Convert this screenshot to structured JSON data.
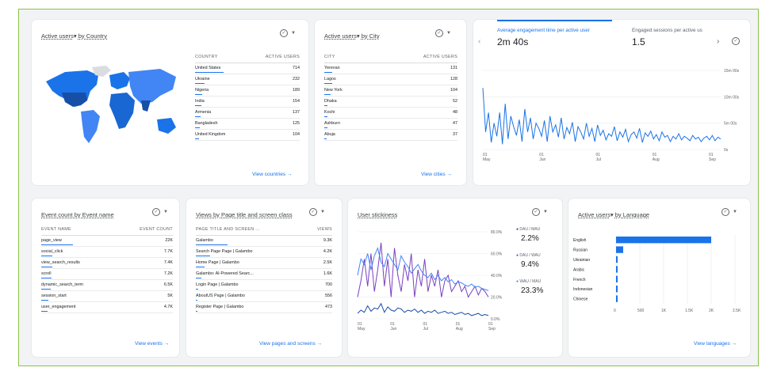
{
  "colors": {
    "accent": "#1a73e8",
    "purple": "#7b3fbf",
    "blue2": "#4285f4"
  },
  "country_card": {
    "title_prefix": "Active users",
    "title_suffix": "by Country",
    "col_country": "COUNTRY",
    "col_users": "ACTIVE USERS",
    "rows": [
      {
        "name": "United States",
        "value": "714",
        "frac": 1.0
      },
      {
        "name": "Ukraine",
        "value": "232",
        "frac": 0.32
      },
      {
        "name": "Nigeria",
        "value": "189",
        "frac": 0.26
      },
      {
        "name": "India",
        "value": "154",
        "frac": 0.22
      },
      {
        "name": "Armenia",
        "value": "137",
        "frac": 0.19
      },
      {
        "name": "Bangladesh",
        "value": "125",
        "frac": 0.18
      },
      {
        "name": "United Kingdom",
        "value": "104",
        "frac": 0.15
      }
    ],
    "link": "View countries"
  },
  "city_card": {
    "title_prefix": "Active users",
    "title_suffix": "by City",
    "col_city": "CITY",
    "col_users": "ACTIVE USERS",
    "rows": [
      {
        "name": "Yerevan",
        "value": "131",
        "frac": 1.0
      },
      {
        "name": "Lagos",
        "value": "128",
        "frac": 0.97
      },
      {
        "name": "New York",
        "value": "104",
        "frac": 0.79
      },
      {
        "name": "Dhaka",
        "value": "52",
        "frac": 0.4
      },
      {
        "name": "Kochi",
        "value": "48",
        "frac": 0.37
      },
      {
        "name": "Ashburn",
        "value": "47",
        "frac": 0.36
      },
      {
        "name": "Abuja",
        "value": "37",
        "frac": 0.28
      }
    ],
    "link": "View cities"
  },
  "engagement_card": {
    "metric1_label": "Average engagement time per active user",
    "metric1_value": "2m 40s",
    "metric2_label": "Engaged sessions per active us",
    "metric2_value": "1.5",
    "chart_data": {
      "type": "line",
      "y_ticks": [
        "15m 00s",
        "10m 00s",
        "5m 00s",
        "0s"
      ],
      "x_ticks": [
        "01 May",
        "01 Jun",
        "01 Jul",
        "01 Aug",
        "01 Sep"
      ],
      "values_seconds": [
        700,
        200,
        420,
        80,
        300,
        150,
        420,
        60,
        520,
        120,
        380,
        260,
        160,
        340,
        90,
        460,
        200,
        360,
        120,
        300,
        240,
        150,
        330,
        90,
        380,
        200,
        280,
        140,
        360,
        120,
        250,
        180,
        310,
        90,
        260,
        200,
        120,
        300,
        150,
        240,
        90,
        280,
        160,
        220,
        110,
        180,
        150,
        260,
        100,
        200,
        140,
        230,
        90,
        170,
        200,
        130,
        240,
        80,
        190,
        150,
        210,
        120,
        170,
        100,
        200,
        140,
        160,
        90,
        150,
        120,
        180,
        110,
        150,
        130,
        100,
        160,
        120,
        140,
        90,
        130,
        150,
        110,
        160,
        100,
        140,
        120
      ]
    }
  },
  "event_card": {
    "title": "Event count by Event name",
    "col_name": "EVENT NAME",
    "col_count": "EVENT COUNT",
    "rows": [
      {
        "name": "page_view",
        "value": "22K",
        "frac": 1.0
      },
      {
        "name": "social_click",
        "value": "7.7K",
        "frac": 0.35
      },
      {
        "name": "view_search_results",
        "value": "7.4K",
        "frac": 0.34
      },
      {
        "name": "scroll",
        "value": "7.2K",
        "frac": 0.33
      },
      {
        "name": "dynamic_search_term",
        "value": "6.5K",
        "frac": 0.3
      },
      {
        "name": "session_start",
        "value": "5K",
        "frac": 0.23
      },
      {
        "name": "user_engagement",
        "value": "4.7K",
        "frac": 0.21
      }
    ],
    "link": "View events"
  },
  "views_card": {
    "title": "Views by Page title and screen class",
    "col_name": "PAGE TITLE AND SCREEN ...",
    "col_count": "VIEWS",
    "rows": [
      {
        "name": "Galambo",
        "value": "9.3K",
        "frac": 1.0
      },
      {
        "name": "Search Page Page | Galambo",
        "value": "4.2K",
        "frac": 0.45
      },
      {
        "name": "Home Page | Galambo",
        "value": "2.5K",
        "frac": 0.27
      },
      {
        "name": "Galambo: AI-Powered Searc...",
        "value": "1.6K",
        "frac": 0.17
      },
      {
        "name": "Login Page | Galambo",
        "value": "700",
        "frac": 0.08
      },
      {
        "name": "AboutUS Page | Galambo",
        "value": "556",
        "frac": 0.06
      },
      {
        "name": "Register Page | Galambo",
        "value": "473",
        "frac": 0.05
      }
    ],
    "link": "View pages and screens"
  },
  "stickiness_card": {
    "title": "User stickiness",
    "metric1_label": "DAU / MAU",
    "metric1_value": "2.2%",
    "metric2_label": "DAU / WAU",
    "metric2_value": "9.4%",
    "metric3_label": "WAU / MAU",
    "metric3_value": "23.3%",
    "chart_data": {
      "type": "line",
      "y_ticks": [
        "80.0%",
        "60.0%",
        "40.0%",
        "20.0%",
        "0.0%"
      ],
      "x_ticks": [
        "01 May",
        "01 Jun",
        "01 Jul",
        "01 Aug",
        "01 Sep"
      ],
      "series": [
        {
          "name": "DAU / WAU",
          "values": [
            20,
            35,
            55,
            30,
            60,
            25,
            45,
            70,
            30,
            55,
            20,
            65,
            40,
            25,
            50,
            35,
            60,
            20,
            45,
            30,
            55,
            25,
            40,
            30,
            45,
            20,
            35,
            40,
            25,
            30,
            35,
            25,
            30,
            20,
            25,
            30,
            22,
            28,
            25,
            20
          ]
        },
        {
          "name": "WAU / MAU",
          "values": [
            40,
            55,
            50,
            60,
            45,
            58,
            65,
            52,
            48,
            60,
            55,
            50,
            45,
            58,
            52,
            48,
            42,
            46,
            50,
            44,
            40,
            38,
            42,
            36,
            40,
            35,
            38,
            34,
            36,
            32,
            34,
            33,
            31,
            30,
            32,
            29,
            30,
            28,
            27,
            26
          ]
        },
        {
          "name": "DAU / MAU",
          "values": [
            5,
            8,
            6,
            12,
            7,
            10,
            9,
            14,
            6,
            11,
            8,
            7,
            10,
            9,
            6,
            8,
            7,
            9,
            6,
            8,
            5,
            7,
            6,
            8,
            5,
            6,
            7,
            5,
            6,
            4,
            5,
            6,
            4,
            5,
            3,
            4,
            5,
            3,
            4,
            3
          ]
        }
      ]
    }
  },
  "language_card": {
    "title_prefix": "Active users",
    "title_suffix": "by Language",
    "chart_data": {
      "type": "bar",
      "categories": [
        "English",
        "Russian",
        "Ukrainian",
        "Arabic",
        "French",
        "Indonesian",
        "Chinese"
      ],
      "values": [
        2000,
        150,
        30,
        25,
        20,
        15,
        10
      ],
      "x_ticks": [
        "0",
        "500",
        "1K",
        "1.5K",
        "2K",
        "2.5K"
      ]
    },
    "link": "View languages"
  }
}
